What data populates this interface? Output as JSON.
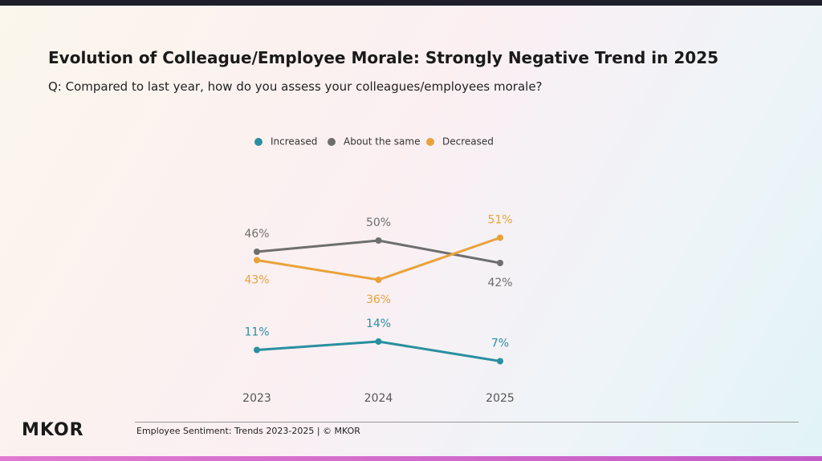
{
  "title": "Evolution of Colleague/Employee Morale: Strongly Negative Trend in 2025",
  "subtitle": "Q: Compared to last year, how do you assess your colleagues/employees morale?",
  "logo": "MKOR",
  "footer": "Employee Sentiment: Trends 2023-2025 | © MKOR",
  "chart_data": {
    "type": "line",
    "categories": [
      "2023",
      "2024",
      "2025"
    ],
    "series": [
      {
        "name": "Increased",
        "color": "#2a8fa0",
        "values": [
          11,
          14,
          7
        ],
        "value_labels": [
          "11%",
          "14%",
          "7%"
        ]
      },
      {
        "name": "About the same",
        "color": "#6e6e6e",
        "values": [
          46,
          50,
          42
        ],
        "value_labels": [
          "46%",
          "50%",
          "42%"
        ]
      },
      {
        "name": "Decreased",
        "color": "#e9a23b",
        "values": [
          43,
          36,
          51
        ],
        "value_labels": [
          "43%",
          "36%",
          "51%"
        ]
      }
    ]
  }
}
